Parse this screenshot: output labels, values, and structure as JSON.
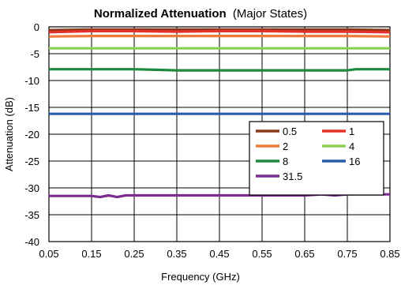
{
  "chart_data": {
    "type": "line",
    "title": "Normalized Attenuation",
    "subtitle": "(Major States)",
    "xlabel": "Frequency (GHz)",
    "ylabel": "Attenuation (dB)",
    "xlim": [
      0.05,
      0.85
    ],
    "ylim": [
      -40,
      0
    ],
    "xticks": [
      "0.05",
      "0.15",
      "0.25",
      "0.35",
      "0.45",
      "0.55",
      "0.65",
      "0.75",
      "0.85"
    ],
    "yticks": [
      "0",
      "-5",
      "-10",
      "-15",
      "-20",
      "-25",
      "-30",
      "-35",
      "-40"
    ],
    "grid": true,
    "legend_position": "right",
    "series": [
      {
        "name": "0.5",
        "color": "#8B3A1A",
        "x": [
          0.05,
          0.15,
          0.25,
          0.35,
          0.45,
          0.55,
          0.65,
          0.75,
          0.85
        ],
        "y": [
          -0.6,
          -0.5,
          -0.5,
          -0.5,
          -0.5,
          -0.5,
          -0.5,
          -0.5,
          -0.6
        ]
      },
      {
        "name": "1",
        "color": "#E8302A",
        "x": [
          0.05,
          0.15,
          0.25,
          0.35,
          0.45,
          0.55,
          0.65,
          0.75,
          0.85
        ],
        "y": [
          -1.0,
          -0.8,
          -0.8,
          -0.9,
          -0.8,
          -0.8,
          -0.9,
          -0.9,
          -1.0
        ]
      },
      {
        "name": "2",
        "color": "#F07A3A",
        "x": [
          0.05,
          0.15,
          0.25,
          0.35,
          0.45,
          0.55,
          0.65,
          0.75,
          0.85
        ],
        "y": [
          -1.8,
          -1.7,
          -1.7,
          -1.7,
          -1.7,
          -1.7,
          -1.7,
          -1.7,
          -1.8
        ]
      },
      {
        "name": "4",
        "color": "#8CD050",
        "x": [
          0.05,
          0.15,
          0.25,
          0.35,
          0.45,
          0.55,
          0.65,
          0.75,
          0.85
        ],
        "y": [
          -4.0,
          -4.0,
          -4.0,
          -4.0,
          -4.0,
          -4.0,
          -4.0,
          -4.0,
          -4.0
        ]
      },
      {
        "name": "8",
        "color": "#1E8A3E",
        "x": [
          0.05,
          0.15,
          0.25,
          0.3,
          0.35,
          0.45,
          0.55,
          0.65,
          0.75,
          0.77,
          0.85
        ],
        "y": [
          -7.9,
          -7.9,
          -7.9,
          -8.0,
          -8.1,
          -8.1,
          -8.1,
          -8.1,
          -8.1,
          -7.9,
          -7.9
        ]
      },
      {
        "name": "16",
        "color": "#2A5CAA",
        "x": [
          0.05,
          0.15,
          0.25,
          0.35,
          0.45,
          0.55,
          0.65,
          0.75,
          0.85
        ],
        "y": [
          -16.2,
          -16.2,
          -16.2,
          -16.2,
          -16.2,
          -16.2,
          -16.2,
          -16.2,
          -16.2
        ]
      },
      {
        "name": "31.5",
        "color": "#7B2D8E",
        "x": [
          0.05,
          0.15,
          0.17,
          0.19,
          0.21,
          0.23,
          0.25,
          0.35,
          0.45,
          0.55,
          0.65,
          0.69,
          0.72,
          0.75,
          0.85
        ],
        "y": [
          -31.5,
          -31.5,
          -31.7,
          -31.4,
          -31.7,
          -31.4,
          -31.4,
          -31.4,
          -31.4,
          -31.4,
          -31.4,
          -31.2,
          -31.4,
          -31.2,
          -31.2
        ]
      }
    ]
  }
}
